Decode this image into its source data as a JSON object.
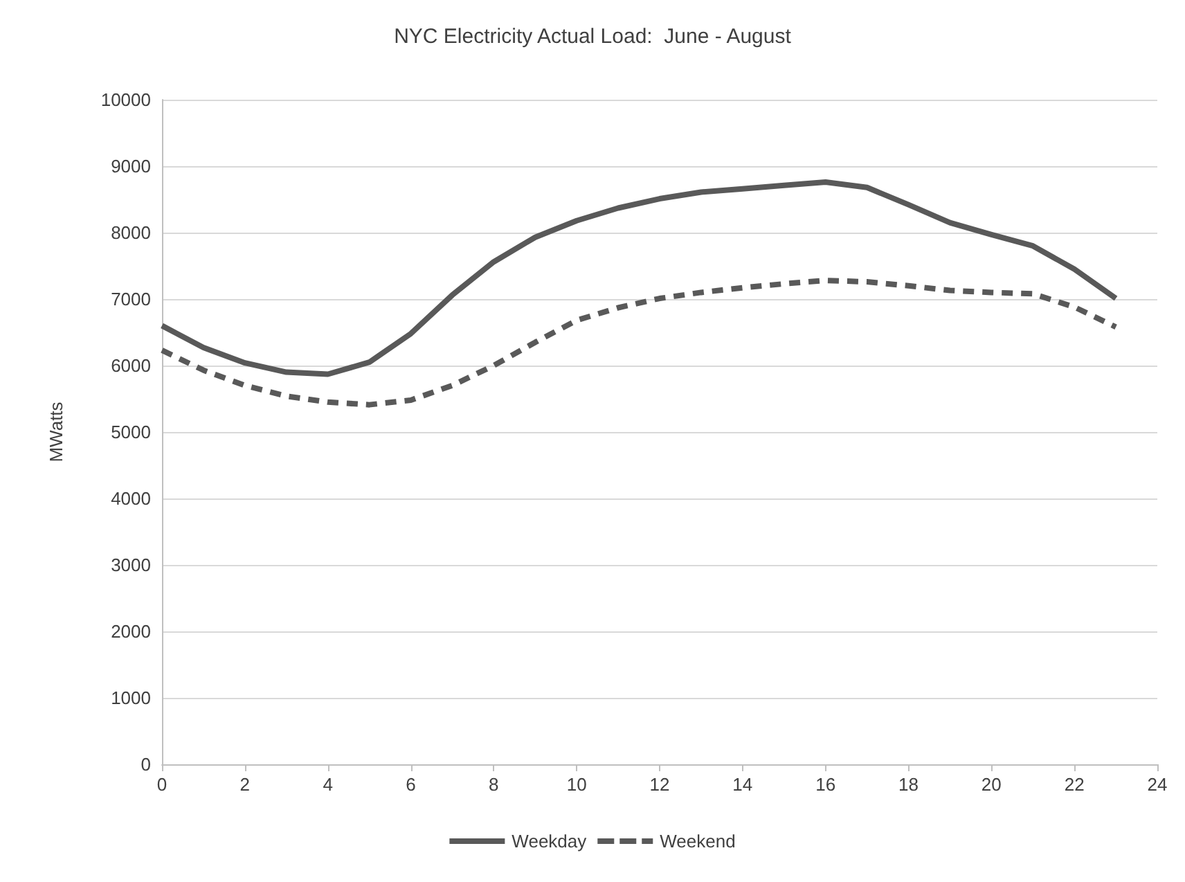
{
  "chart_data": {
    "type": "line",
    "title": "NYC Electricity Actual Load:  June - August",
    "ylabel": "MWatts",
    "x": [
      0,
      1,
      2,
      3,
      4,
      5,
      6,
      7,
      8,
      9,
      10,
      11,
      12,
      13,
      14,
      15,
      16,
      17,
      18,
      19,
      20,
      21,
      22,
      23
    ],
    "series": [
      {
        "name": "Weekday",
        "color": "#595959",
        "line_style": "solid",
        "values": [
          6600,
          6270,
          6040,
          5900,
          5870,
          6050,
          6480,
          7060,
          7560,
          7930,
          8180,
          8370,
          8510,
          8610,
          8660,
          8710,
          8760,
          8680,
          8420,
          8150,
          7970,
          7800,
          7450,
          7010
        ]
      },
      {
        "name": "Weekend",
        "color": "#595959",
        "line_style": "dashed",
        "values": [
          6230,
          5930,
          5700,
          5540,
          5450,
          5410,
          5480,
          5700,
          6000,
          6350,
          6680,
          6870,
          7010,
          7100,
          7170,
          7230,
          7280,
          7260,
          7200,
          7130,
          7100,
          7080,
          6880,
          6580
        ]
      }
    ],
    "xlim": [
      0,
      24
    ],
    "xticks": [
      0,
      2,
      4,
      6,
      8,
      10,
      12,
      14,
      16,
      18,
      20,
      22,
      24
    ],
    "ylim": [
      0,
      10000
    ],
    "yticks": [
      0,
      1000,
      2000,
      3000,
      4000,
      5000,
      6000,
      7000,
      8000,
      9000,
      10000
    ],
    "grid": "y",
    "legend": "bottom",
    "marker": "none"
  }
}
